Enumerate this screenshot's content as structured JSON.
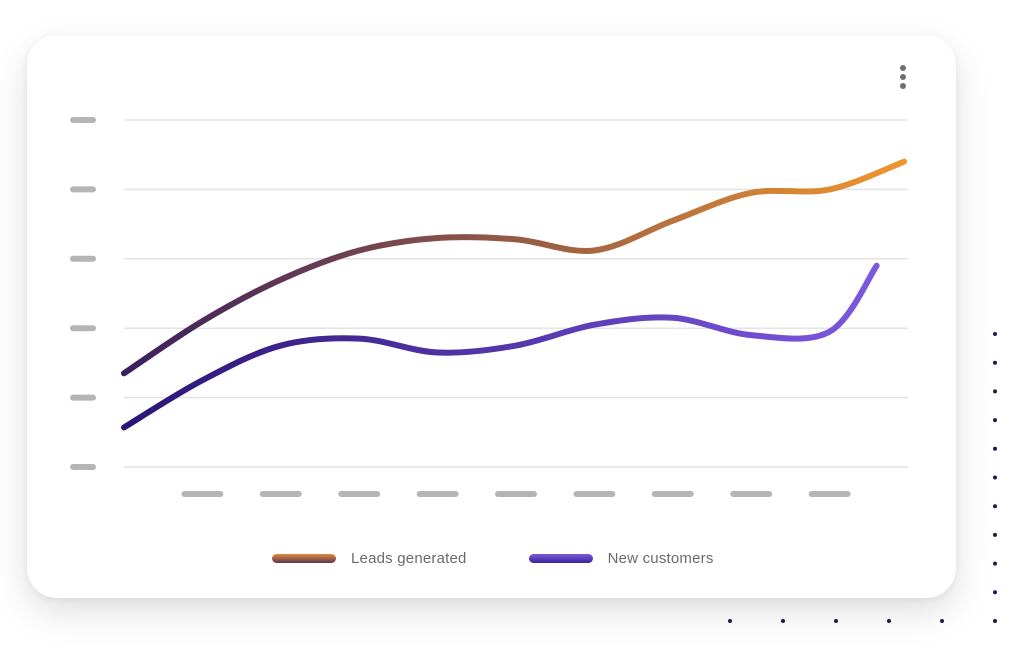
{
  "chart_data": {
    "type": "line",
    "title": "",
    "xlabel": "",
    "ylabel": "",
    "ylim": [
      0,
      5
    ],
    "grid": true,
    "legend_position": "bottom",
    "x": [
      0,
      1,
      2,
      3,
      4,
      5,
      6,
      7,
      8,
      9,
      10
    ],
    "x_ticks": [
      1,
      2,
      3,
      4,
      5,
      6,
      7,
      8,
      9
    ],
    "y_ticks": [
      0,
      1,
      2,
      3,
      4,
      5
    ],
    "series": [
      {
        "name": "Leads generated",
        "color_start": "#3a1f5e",
        "color_end": "#f0962e",
        "x": [
          0,
          1,
          2,
          3,
          4,
          5,
          6,
          7,
          8,
          9,
          9.95
        ],
        "values": [
          1.35,
          2.1,
          2.7,
          3.12,
          3.3,
          3.28,
          3.12,
          3.55,
          3.95,
          4.0,
          4.4
        ]
      },
      {
        "name": "New customers",
        "color_start": "#2b1575",
        "color_end": "#7d58e0",
        "x": [
          0,
          1,
          2,
          3,
          4,
          5,
          6,
          7,
          8,
          9,
          9.6
        ],
        "values": [
          0.57,
          1.25,
          1.75,
          1.85,
          1.65,
          1.75,
          2.05,
          2.15,
          1.9,
          1.95,
          2.9
        ]
      }
    ]
  },
  "colors": {
    "grid": "#e4e4e4",
    "tick_placeholder": "#b5b5b5",
    "dot": "#1f1b4d"
  },
  "legend": [
    {
      "label": "Leads generated"
    },
    {
      "label": "New customers"
    }
  ]
}
